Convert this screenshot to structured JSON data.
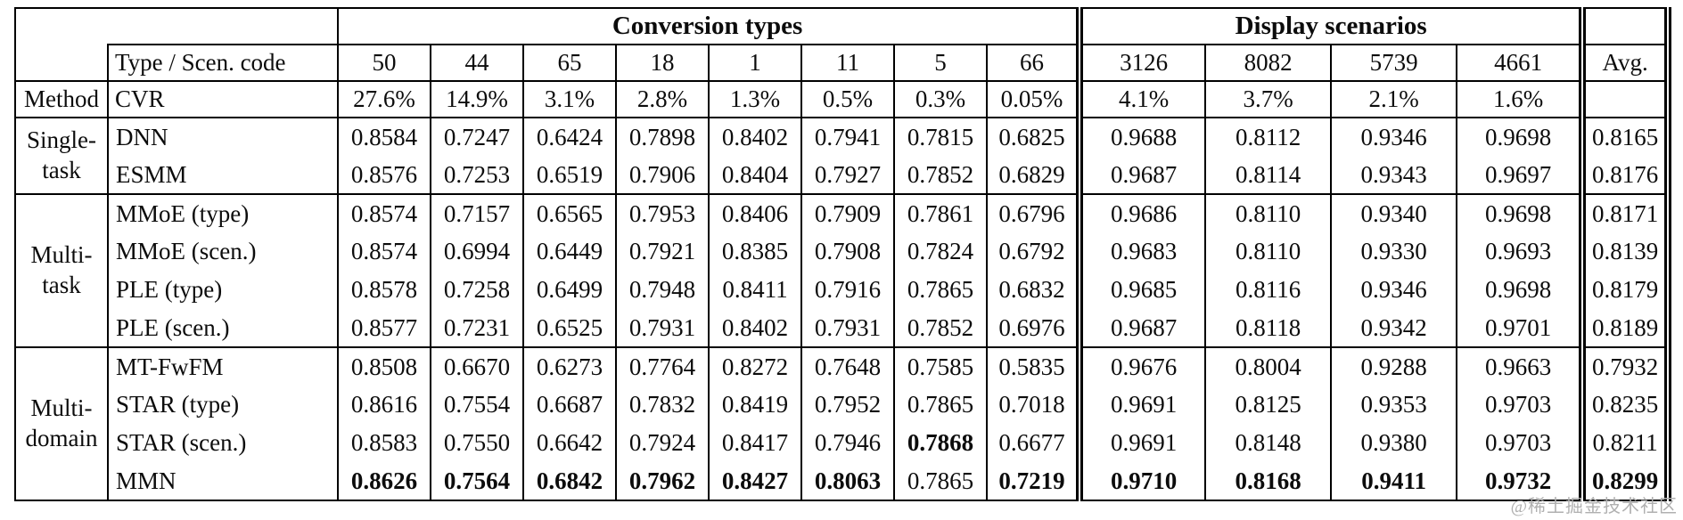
{
  "watermark": "@稀土掘金技术社区",
  "table": {
    "col_groups": [
      {
        "label": "Conversion types",
        "span": 8
      },
      {
        "label": "Display scenarios",
        "span": 4
      }
    ],
    "code_row": {
      "label": "Type / Scen. code",
      "codes": [
        "50",
        "44",
        "65",
        "18",
        "1",
        "11",
        "5",
        "66",
        "3126",
        "8082",
        "5739",
        "4661"
      ],
      "avg": "Avg."
    },
    "cvr_row": {
      "method_label": "Method",
      "label": "CVR",
      "values": [
        "27.6%",
        "14.9%",
        "3.1%",
        "2.8%",
        "1.3%",
        "0.5%",
        "0.3%",
        "0.05%",
        "4.1%",
        "3.7%",
        "2.1%",
        "1.6%"
      ]
    },
    "groups": [
      {
        "label_lines": [
          "Single-",
          "task"
        ],
        "rows": [
          {
            "method": "DNN",
            "values": [
              "0.8584",
              "0.7247",
              "0.6424",
              "0.7898",
              "0.8402",
              "0.7941",
              "0.7815",
              "0.6825",
              "0.9688",
              "0.8112",
              "0.9346",
              "0.9698",
              "0.8165"
            ],
            "bold": []
          },
          {
            "method": "ESMM",
            "values": [
              "0.8576",
              "0.7253",
              "0.6519",
              "0.7906",
              "0.8404",
              "0.7927",
              "0.7852",
              "0.6829",
              "0.9687",
              "0.8114",
              "0.9343",
              "0.9697",
              "0.8176"
            ],
            "bold": []
          }
        ]
      },
      {
        "label_lines": [
          "Multi-",
          "task"
        ],
        "rows": [
          {
            "method": "MMoE (type)",
            "values": [
              "0.8574",
              "0.7157",
              "0.6565",
              "0.7953",
              "0.8406",
              "0.7909",
              "0.7861",
              "0.6796",
              "0.9686",
              "0.8110",
              "0.9340",
              "0.9698",
              "0.8171"
            ],
            "bold": []
          },
          {
            "method": "MMoE (scen.)",
            "values": [
              "0.8574",
              "0.6994",
              "0.6449",
              "0.7921",
              "0.8385",
              "0.7908",
              "0.7824",
              "0.6792",
              "0.9683",
              "0.8110",
              "0.9330",
              "0.9693",
              "0.8139"
            ],
            "bold": []
          },
          {
            "method": "PLE (type)",
            "values": [
              "0.8578",
              "0.7258",
              "0.6499",
              "0.7948",
              "0.8411",
              "0.7916",
              "0.7865",
              "0.6832",
              "0.9685",
              "0.8116",
              "0.9346",
              "0.9698",
              "0.8179"
            ],
            "bold": []
          },
          {
            "method": "PLE (scen.)",
            "values": [
              "0.8577",
              "0.7231",
              "0.6525",
              "0.7931",
              "0.8402",
              "0.7931",
              "0.7852",
              "0.6976",
              "0.9687",
              "0.8118",
              "0.9342",
              "0.9701",
              "0.8189"
            ],
            "bold": []
          }
        ]
      },
      {
        "label_lines": [
          "Multi-",
          "domain"
        ],
        "rows": [
          {
            "method": "MT-FwFM",
            "values": [
              "0.8508",
              "0.6670",
              "0.6273",
              "0.7764",
              "0.8272",
              "0.7648",
              "0.7585",
              "0.5835",
              "0.9676",
              "0.8004",
              "0.9288",
              "0.9663",
              "0.7932"
            ],
            "bold": []
          },
          {
            "method": "STAR (type)",
            "values": [
              "0.8616",
              "0.7554",
              "0.6687",
              "0.7832",
              "0.8419",
              "0.7952",
              "0.7865",
              "0.7018",
              "0.9691",
              "0.8125",
              "0.9353",
              "0.9703",
              "0.8235"
            ],
            "bold": []
          },
          {
            "method": "STAR (scen.)",
            "values": [
              "0.8583",
              "0.7550",
              "0.6642",
              "0.7924",
              "0.8417",
              "0.7946",
              "0.7868",
              "0.6677",
              "0.9691",
              "0.8148",
              "0.9380",
              "0.9703",
              "0.8211"
            ],
            "bold": [
              6
            ]
          },
          {
            "method": "MMN",
            "values": [
              "0.8626",
              "0.7564",
              "0.6842",
              "0.7962",
              "0.8427",
              "0.8063",
              "0.7865",
              "0.7219",
              "0.9710",
              "0.8168",
              "0.9411",
              "0.9732",
              "0.8299"
            ],
            "bold": [
              0,
              1,
              2,
              3,
              4,
              5,
              7,
              8,
              9,
              10,
              11,
              12
            ]
          }
        ]
      }
    ]
  }
}
